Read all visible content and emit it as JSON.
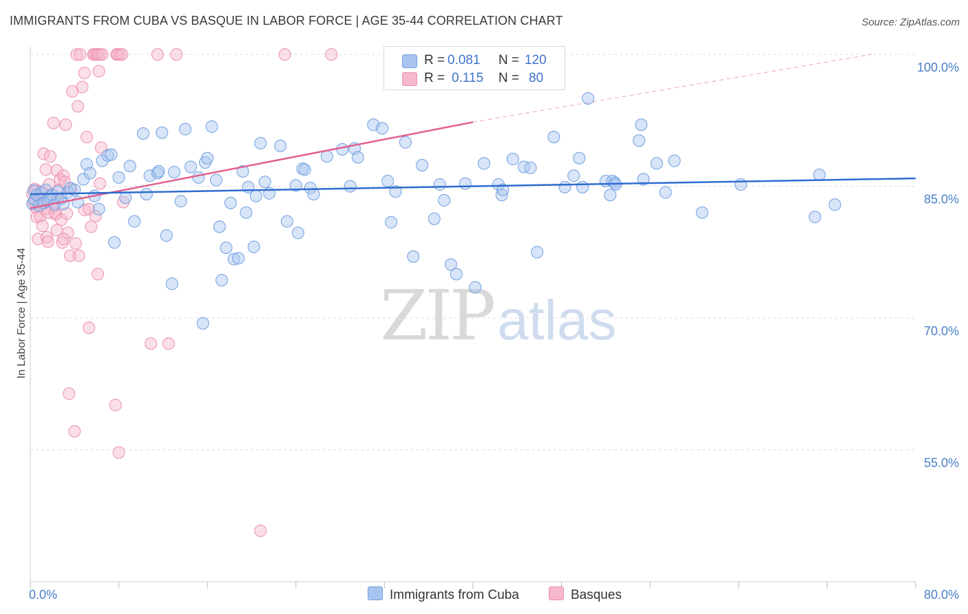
{
  "header": {
    "title": "IMMIGRANTS FROM CUBA VS BASQUE IN LABOR FORCE | AGE 35-44 CORRELATION CHART",
    "source": "Source: ZipAtlas.com"
  },
  "watermark": {
    "zip": "ZIP",
    "atlas": "atlas"
  },
  "legend": {
    "rows": [
      {
        "r_label": "R = ",
        "r_value": "0.081",
        "n_label": "N = ",
        "n_value": "120"
      },
      {
        "r_label": "R = ",
        "r_value": "0.115",
        "n_label": "N = ",
        "n_value": "80"
      }
    ]
  },
  "colors": {
    "blue_fill": "#a9c5ef",
    "blue_stroke": "#6f9ee0",
    "blue_line": "#2f6ccf",
    "pink_fill": "#f6b8cb",
    "pink_stroke": "#ec8fae",
    "pink_line": "#e0608f",
    "grid": "#dddddd",
    "tick_text": "#4a7ec8"
  },
  "chart_data": {
    "type": "scatter",
    "ylabel": "In Labor Force | Age 35-44",
    "xlabel": "",
    "xlim": [
      0,
      80
    ],
    "ylim": [
      40,
      101.5
    ],
    "x_tick_labels": [
      {
        "value": 0,
        "label": "0.0%"
      },
      {
        "value": 80,
        "label": "80.0%"
      }
    ],
    "y_tick_labels": [
      {
        "value": 100,
        "label": "100.0%"
      },
      {
        "value": 85,
        "label": "85.0%"
      },
      {
        "value": 70,
        "label": "70.0%"
      },
      {
        "value": 55,
        "label": "55.0%"
      }
    ],
    "grid": true,
    "legend_position": "bottom-center",
    "series": [
      {
        "name": "Immigrants from Cuba",
        "color": "#a9c5ef",
        "trend": {
          "x": [
            0,
            80
          ],
          "y": [
            84.1,
            85.9
          ]
        },
        "points": [
          [
            0.2,
            83.0
          ],
          [
            0.3,
            84.5
          ],
          [
            0.4,
            83.5
          ],
          [
            0.6,
            84.0
          ],
          [
            0.8,
            82.8
          ],
          [
            1.0,
            84.2
          ],
          [
            1.2,
            83.1
          ],
          [
            1.4,
            84.6
          ],
          [
            1.6,
            83.3
          ],
          [
            1.8,
            83.8
          ],
          [
            2.0,
            84.0
          ],
          [
            2.2,
            82.9
          ],
          [
            2.5,
            84.4
          ],
          [
            2.8,
            83.6
          ],
          [
            3.0,
            83.0
          ],
          [
            3.4,
            84.3
          ],
          [
            3.6,
            84.8
          ],
          [
            4.0,
            84.6
          ],
          [
            4.3,
            83.2
          ],
          [
            4.8,
            85.8
          ],
          [
            5.1,
            87.5
          ],
          [
            5.4,
            86.5
          ],
          [
            5.8,
            83.9
          ],
          [
            6.2,
            82.4
          ],
          [
            6.5,
            87.9
          ],
          [
            7.0,
            88.5
          ],
          [
            7.3,
            88.6
          ],
          [
            8.0,
            86.0
          ],
          [
            8.6,
            83.7
          ],
          [
            9.0,
            87.3
          ],
          [
            7.6,
            78.6
          ],
          [
            10.2,
            91.0
          ],
          [
            9.4,
            81.0
          ],
          [
            10.5,
            84.1
          ],
          [
            10.8,
            86.2
          ],
          [
            11.5,
            86.5
          ],
          [
            11.6,
            86.7
          ],
          [
            11.9,
            91.1
          ],
          [
            12.3,
            79.4
          ],
          [
            12.8,
            73.9
          ],
          [
            13.0,
            86.6
          ],
          [
            13.6,
            83.3
          ],
          [
            14.0,
            91.5
          ],
          [
            14.5,
            87.2
          ],
          [
            15.2,
            86.0
          ],
          [
            15.6,
            69.4
          ],
          [
            15.8,
            87.7
          ],
          [
            16.0,
            88.2
          ],
          [
            16.4,
            91.8
          ],
          [
            16.8,
            85.7
          ],
          [
            17.1,
            80.4
          ],
          [
            17.3,
            74.3
          ],
          [
            17.7,
            78.0
          ],
          [
            18.1,
            83.1
          ],
          [
            18.4,
            76.7
          ],
          [
            18.8,
            76.8
          ],
          [
            19.2,
            86.7
          ],
          [
            19.5,
            82.0
          ],
          [
            19.7,
            84.9
          ],
          [
            20.2,
            78.1
          ],
          [
            20.4,
            83.9
          ],
          [
            20.8,
            89.9
          ],
          [
            21.2,
            85.5
          ],
          [
            21.6,
            84.2
          ],
          [
            22.6,
            89.6
          ],
          [
            23.2,
            81.0
          ],
          [
            24.0,
            85.1
          ],
          [
            24.2,
            79.7
          ],
          [
            24.6,
            87.0
          ],
          [
            24.8,
            86.9
          ],
          [
            25.3,
            84.8
          ],
          [
            25.6,
            84.1
          ],
          [
            26.8,
            88.4
          ],
          [
            28.2,
            89.2
          ],
          [
            28.9,
            85.0
          ],
          [
            29.3,
            89.3
          ],
          [
            29.6,
            88.3
          ],
          [
            31.0,
            92.0
          ],
          [
            31.8,
            91.6
          ],
          [
            32.3,
            85.6
          ],
          [
            32.6,
            80.9
          ],
          [
            33.0,
            84.4
          ],
          [
            33.9,
            90.0
          ],
          [
            34.6,
            77.0
          ],
          [
            35.4,
            87.4
          ],
          [
            36.5,
            81.3
          ],
          [
            37.0,
            85.2
          ],
          [
            37.4,
            83.4
          ],
          [
            38.0,
            76.1
          ],
          [
            38.5,
            75.0
          ],
          [
            39.3,
            85.3
          ],
          [
            40.2,
            73.5
          ],
          [
            41.0,
            87.6
          ],
          [
            42.3,
            85.2
          ],
          [
            42.6,
            84.0
          ],
          [
            42.7,
            84.6
          ],
          [
            43.6,
            88.1
          ],
          [
            44.6,
            87.2
          ],
          [
            45.2,
            87.1
          ],
          [
            45.8,
            77.5
          ],
          [
            47.3,
            90.6
          ],
          [
            48.3,
            84.9
          ],
          [
            49.1,
            86.2
          ],
          [
            49.6,
            88.2
          ],
          [
            49.9,
            84.9
          ],
          [
            50.4,
            95.0
          ],
          [
            52.0,
            85.6
          ],
          [
            52.4,
            84.0
          ],
          [
            52.6,
            85.6
          ],
          [
            52.8,
            85.4
          ],
          [
            52.9,
            85.2
          ],
          [
            55.0,
            90.2
          ],
          [
            55.2,
            92.0
          ],
          [
            55.4,
            85.8
          ],
          [
            56.6,
            87.6
          ],
          [
            57.4,
            84.3
          ],
          [
            58.2,
            87.9
          ],
          [
            60.7,
            82.0
          ],
          [
            64.2,
            85.2
          ],
          [
            70.9,
            81.5
          ],
          [
            71.3,
            86.3
          ],
          [
            72.7,
            82.9
          ]
        ]
      },
      {
        "name": "Basques",
        "color": "#f6b8cb",
        "trend": {
          "x": [
            0,
            40
          ],
          "y": [
            82.5,
            92.3
          ]
        },
        "trend_extension": {
          "x": [
            40,
            76
          ],
          "y": [
            92.3,
            100.0
          ]
        },
        "points": [
          [
            0.2,
            84.1
          ],
          [
            0.3,
            83.2
          ],
          [
            0.4,
            84.7
          ],
          [
            0.5,
            82.6
          ],
          [
            0.6,
            81.5
          ],
          [
            0.7,
            79.0
          ],
          [
            0.8,
            83.6
          ],
          [
            0.9,
            81.6
          ],
          [
            1.0,
            84.4
          ],
          [
            1.1,
            80.5
          ],
          [
            1.2,
            88.7
          ],
          [
            1.3,
            82.4
          ],
          [
            1.4,
            86.9
          ],
          [
            1.5,
            79.2
          ],
          [
            1.6,
            78.7
          ],
          [
            1.7,
            85.2
          ],
          [
            1.8,
            88.4
          ],
          [
            1.9,
            84.1
          ],
          [
            2.0,
            82.6
          ],
          [
            2.1,
            92.2
          ],
          [
            2.2,
            82.0
          ],
          [
            2.3,
            81.8
          ],
          [
            2.4,
            86.8
          ],
          [
            2.5,
            83.6
          ],
          [
            2.6,
            84.6
          ],
          [
            2.7,
            85.8
          ],
          [
            2.8,
            81.2
          ],
          [
            2.9,
            78.6
          ],
          [
            3.0,
            86.2
          ],
          [
            3.1,
            85.5
          ],
          [
            3.2,
            92.0
          ],
          [
            3.3,
            81.9
          ],
          [
            3.4,
            79.7
          ],
          [
            3.5,
            61.4
          ],
          [
            3.6,
            77.1
          ],
          [
            3.7,
            84.7
          ],
          [
            3.8,
            95.8
          ],
          [
            4.0,
            57.1
          ],
          [
            4.1,
            78.5
          ],
          [
            4.2,
            100.0
          ],
          [
            4.3,
            94.1
          ],
          [
            4.4,
            77.1
          ],
          [
            4.5,
            100.0
          ],
          [
            4.7,
            96.3
          ],
          [
            4.9,
            97.9
          ],
          [
            4.9,
            82.3
          ],
          [
            5.1,
            90.6
          ],
          [
            5.3,
            82.4
          ],
          [
            5.5,
            80.4
          ],
          [
            5.7,
            100.0
          ],
          [
            5.8,
            100.0
          ],
          [
            5.9,
            81.6
          ],
          [
            6.0,
            100.0
          ],
          [
            6.1,
            100.0
          ],
          [
            6.1,
            75.0
          ],
          [
            6.2,
            98.1
          ],
          [
            6.3,
            100.0
          ],
          [
            6.3,
            85.3
          ],
          [
            6.4,
            89.4
          ],
          [
            6.5,
            100.0
          ],
          [
            5.3,
            68.9
          ],
          [
            7.7,
            60.1
          ],
          [
            7.8,
            100.0
          ],
          [
            7.9,
            100.0
          ],
          [
            8.0,
            54.7
          ],
          [
            8.1,
            100.0
          ],
          [
            8.3,
            100.0
          ],
          [
            8.4,
            83.2
          ],
          [
            10.9,
            67.1
          ],
          [
            11.5,
            100.0
          ],
          [
            12.5,
            67.1
          ],
          [
            13.2,
            100.0
          ],
          [
            20.8,
            45.8
          ],
          [
            23.0,
            100.0
          ],
          [
            27.2,
            100.0
          ],
          [
            1.0,
            83.0
          ],
          [
            0.5,
            84.5
          ],
          [
            1.6,
            82.0
          ],
          [
            2.4,
            80.0
          ],
          [
            3.0,
            79.0
          ]
        ]
      }
    ]
  }
}
